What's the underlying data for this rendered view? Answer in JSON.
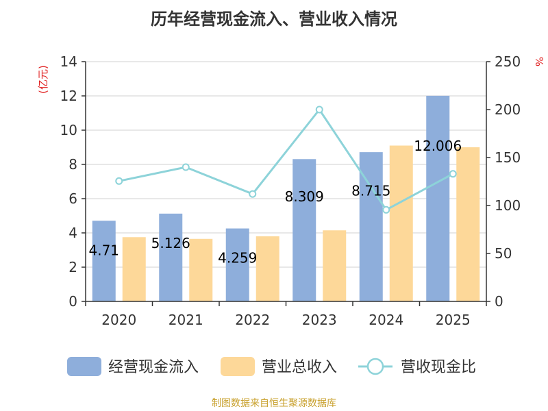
{
  "title": "历年经营现金流入、营业收入情况",
  "footer": "制图数据来自恒生聚源数据库",
  "chart_data": {
    "type": "bar",
    "categories": [
      "2020",
      "2021",
      "2022",
      "2023",
      "2024",
      "2025"
    ],
    "series": [
      {
        "name": "经营现金流入",
        "kind": "bar",
        "axis": "left",
        "color": "#8eaedb",
        "values": [
          4.71,
          5.126,
          4.259,
          8.309,
          8.715,
          12.006
        ],
        "labels": [
          "4.71",
          "5.126",
          "4.259",
          "8.309",
          "8.715",
          "12.006"
        ]
      },
      {
        "name": "营业总收入",
        "kind": "bar",
        "axis": "left",
        "color": "#fdd899",
        "values": [
          3.75,
          3.65,
          3.8,
          4.15,
          9.1,
          9.0
        ]
      },
      {
        "name": "营收现金比",
        "kind": "line",
        "axis": "right",
        "color": "#8dd3d9",
        "values": [
          125.5,
          140,
          112,
          200,
          95.5,
          133
        ]
      }
    ],
    "y_left": {
      "label": "(亿元)",
      "min": 0,
      "max": 14,
      "ticks": [
        0,
        2,
        4,
        6,
        8,
        10,
        12,
        14
      ]
    },
    "y_right": {
      "label": "%",
      "min": 0,
      "max": 250,
      "ticks": [
        0,
        50,
        100,
        150,
        200,
        250
      ]
    },
    "grid": true,
    "legend_position": "bottom"
  }
}
